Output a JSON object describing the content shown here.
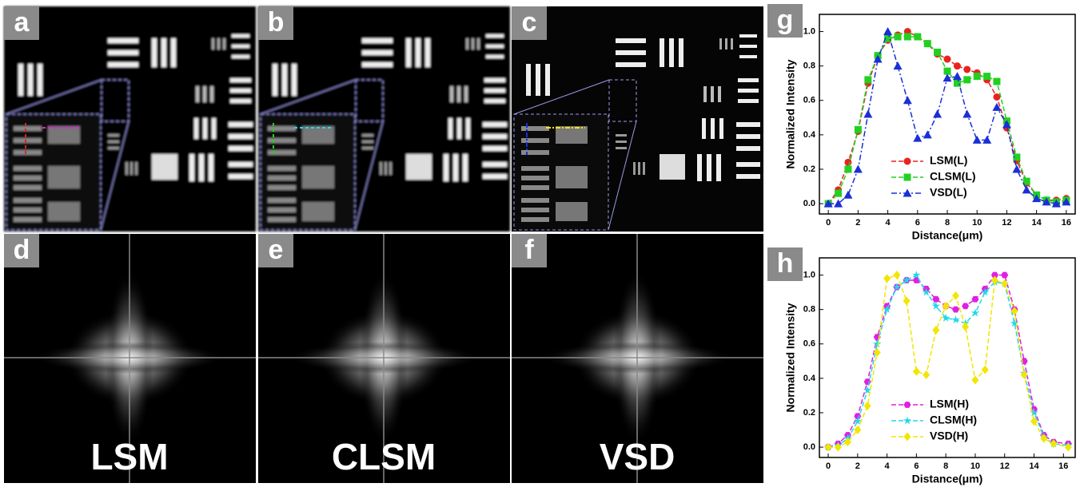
{
  "panels": [
    {
      "label": "a"
    },
    {
      "label": "b"
    },
    {
      "label": "c"
    },
    {
      "label": "d",
      "caption": "LSM"
    },
    {
      "label": "e",
      "caption": "CLSM"
    },
    {
      "label": "f",
      "caption": "VSD"
    }
  ],
  "chart_data": [
    {
      "type": "line",
      "panel_label": "g",
      "x_label": "Distance(μm)",
      "y_label": "Normalized Intensity",
      "x": [
        0,
        0.67,
        1.33,
        2,
        2.67,
        3.33,
        4,
        4.67,
        5.33,
        6,
        6.67,
        7.33,
        8,
        8.67,
        9.33,
        10,
        10.67,
        11.33,
        12,
        12.67,
        13.33,
        14,
        14.67,
        15.33,
        16
      ],
      "xlim": [
        -0.6,
        16.6
      ],
      "xticks": [
        0,
        2,
        4,
        6,
        8,
        10,
        12,
        14,
        16
      ],
      "ylim": [
        -0.06,
        1.1
      ],
      "yticks": [
        {
          "value": 0,
          "label": "0.0"
        },
        0.2,
        0.4,
        0.6,
        0.8,
        {
          "value": 1,
          "label": "1.0"
        }
      ],
      "legend": "lower center",
      "series": [
        {
          "name": "LSM(L)",
          "color": "#e8231f",
          "marker": "circle",
          "dash": "dash",
          "values": [
            0,
            0.08,
            0.24,
            0.42,
            0.7,
            0.86,
            0.95,
            0.98,
            1.0,
            0.97,
            0.93,
            0.87,
            0.84,
            0.8,
            0.78,
            0.76,
            0.72,
            0.62,
            0.44,
            0.25,
            0.12,
            0.05,
            0.02,
            0.02,
            0.03
          ]
        },
        {
          "name": "CLSM(L)",
          "color": "#22d022",
          "marker": "square",
          "dash": "dash",
          "values": [
            0,
            0.06,
            0.2,
            0.43,
            0.72,
            0.86,
            0.96,
            0.97,
            0.97,
            0.97,
            0.93,
            0.88,
            0.77,
            0.7,
            0.72,
            0.74,
            0.74,
            0.71,
            0.48,
            0.27,
            0.13,
            0.05,
            0.02,
            0.01,
            0.02
          ]
        },
        {
          "name": "VSD(L)",
          "color": "#1a2fd6",
          "marker": "triangle",
          "dash": "dashdot",
          "values": [
            0,
            0,
            0.05,
            0.2,
            0.52,
            0.84,
            1.0,
            0.8,
            0.6,
            0.38,
            0.4,
            0.52,
            0.73,
            0.74,
            0.52,
            0.37,
            0.37,
            0.56,
            0.46,
            0.2,
            0.08,
            0.03,
            0.01,
            0,
            0.01
          ]
        }
      ]
    },
    {
      "type": "line",
      "panel_label": "h",
      "x_label": "Distance(μm)",
      "y_label": "Normalized Intensity",
      "x": [
        0,
        0.67,
        1.33,
        2,
        2.67,
        3.33,
        4,
        4.67,
        5.33,
        6,
        6.67,
        7.33,
        8,
        8.67,
        9.33,
        10,
        10.67,
        11.33,
        12,
        12.67,
        13.33,
        14,
        14.67,
        15.33,
        16.33
      ],
      "xlim": [
        -0.6,
        16.8
      ],
      "xticks": [
        0,
        2,
        4,
        6,
        8,
        10,
        12,
        14,
        16
      ],
      "ylim": [
        -0.06,
        1.1
      ],
      "yticks": [
        {
          "value": 0,
          "label": "0.0"
        },
        0.2,
        0.4,
        0.6,
        0.8,
        {
          "value": 1,
          "label": "1.0"
        }
      ],
      "legend": "lower center",
      "series": [
        {
          "name": "LSM(H)",
          "color": "#e020e0",
          "marker": "hexagon",
          "dash": "dash",
          "values": [
            0,
            0.02,
            0.07,
            0.18,
            0.38,
            0.64,
            0.82,
            0.93,
            0.97,
            0.97,
            0.92,
            0.86,
            0.82,
            0.8,
            0.82,
            0.86,
            0.92,
            1.0,
            1.0,
            0.8,
            0.5,
            0.22,
            0.07,
            0.03,
            0.02
          ]
        },
        {
          "name": "CLSM(H)",
          "color": "#22d8e8",
          "marker": "star",
          "dash": "dash",
          "values": [
            0,
            0.01,
            0.05,
            0.15,
            0.33,
            0.6,
            0.8,
            0.93,
            0.97,
            1.0,
            0.9,
            0.82,
            0.75,
            0.74,
            0.72,
            0.78,
            0.9,
            0.96,
            0.95,
            0.72,
            0.43,
            0.2,
            0.06,
            0.02,
            0.01
          ]
        },
        {
          "name": "VSD(H)",
          "color": "#f2e600",
          "marker": "diamond",
          "dash": "dash",
          "values": [
            0,
            0,
            0.03,
            0.1,
            0.24,
            0.55,
            0.98,
            1.0,
            0.85,
            0.44,
            0.42,
            0.68,
            0.82,
            0.88,
            0.7,
            0.39,
            0.45,
            0.97,
            0.95,
            0.79,
            0.42,
            0.15,
            0.05,
            0.02,
            0
          ]
        }
      ]
    }
  ]
}
